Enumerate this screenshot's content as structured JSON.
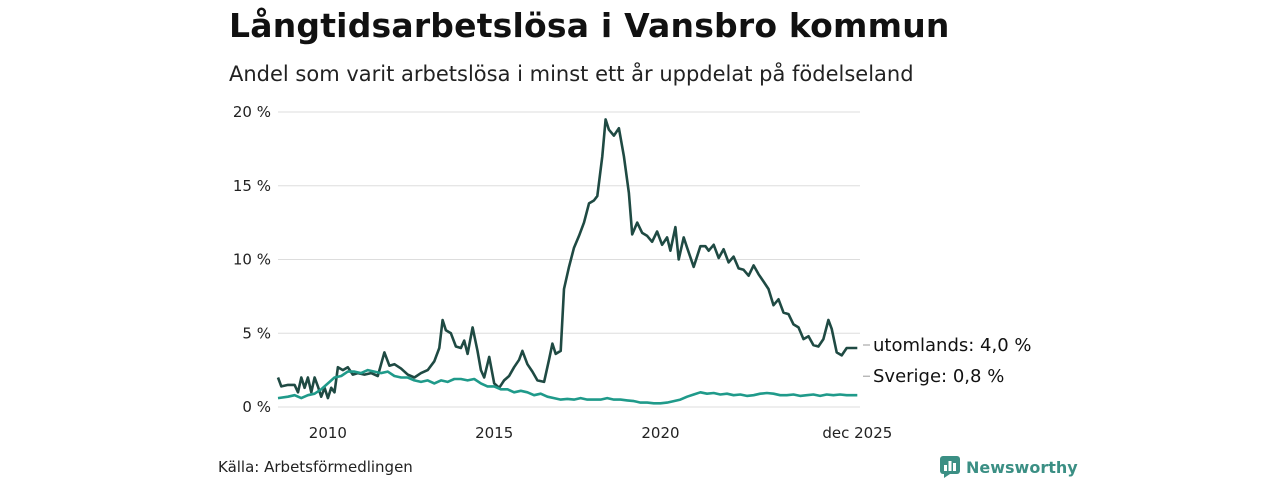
{
  "title": "Långtidsarbetslösa i Vansbro kommun",
  "subtitle": "Andel som varit arbetslösa i minst ett år uppdelat på födelseland",
  "source": "Källa: Arbetsförmedlingen",
  "brand": "Newsworthy",
  "colors": {
    "utomlands": "#1f4a43",
    "sverige": "#1f9a8a",
    "grid": "#dddddd",
    "brand": "#3b8f84"
  },
  "chart_data": {
    "type": "line",
    "title": "Långtidsarbetslösa i Vansbro kommun",
    "ylim": [
      0,
      20
    ],
    "xlim": [
      2008.5,
      2026.0
    ],
    "y_ticks": [
      {
        "value": 0,
        "label": "0 %"
      },
      {
        "value": 5,
        "label": "5 %"
      },
      {
        "value": 10,
        "label": "10 %"
      },
      {
        "value": 15,
        "label": "15 %"
      },
      {
        "value": 20,
        "label": "20 %"
      }
    ],
    "x_ticks": [
      {
        "value": 2010,
        "label": "2010"
      },
      {
        "value": 2015,
        "label": "2015"
      },
      {
        "value": 2020,
        "label": "2020"
      },
      {
        "value": 2025.92,
        "label": "dec 2025"
      }
    ],
    "grid": true,
    "series": [
      {
        "name": "utomlands",
        "end_label": "utomlands: 4,0 %",
        "points": [
          [
            2008.5,
            2.0
          ],
          [
            2008.6,
            1.4
          ],
          [
            2008.8,
            1.5
          ],
          [
            2009.0,
            1.5
          ],
          [
            2009.1,
            1.0
          ],
          [
            2009.2,
            2.0
          ],
          [
            2009.3,
            1.3
          ],
          [
            2009.4,
            2.0
          ],
          [
            2009.5,
            1.0
          ],
          [
            2009.6,
            2.0
          ],
          [
            2009.7,
            1.4
          ],
          [
            2009.8,
            0.7
          ],
          [
            2009.9,
            1.3
          ],
          [
            2010.0,
            0.6
          ],
          [
            2010.1,
            1.3
          ],
          [
            2010.2,
            1.0
          ],
          [
            2010.3,
            2.7
          ],
          [
            2010.45,
            2.5
          ],
          [
            2010.6,
            2.7
          ],
          [
            2010.75,
            2.2
          ],
          [
            2010.9,
            2.3
          ],
          [
            2011.1,
            2.2
          ],
          [
            2011.3,
            2.3
          ],
          [
            2011.5,
            2.1
          ],
          [
            2011.7,
            3.7
          ],
          [
            2011.85,
            2.8
          ],
          [
            2012.0,
            2.9
          ],
          [
            2012.2,
            2.6
          ],
          [
            2012.4,
            2.2
          ],
          [
            2012.6,
            2.0
          ],
          [
            2012.8,
            2.3
          ],
          [
            2013.0,
            2.5
          ],
          [
            2013.2,
            3.1
          ],
          [
            2013.35,
            4.0
          ],
          [
            2013.45,
            5.9
          ],
          [
            2013.55,
            5.2
          ],
          [
            2013.7,
            5.0
          ],
          [
            2013.85,
            4.1
          ],
          [
            2014.0,
            4.0
          ],
          [
            2014.1,
            4.5
          ],
          [
            2014.2,
            3.6
          ],
          [
            2014.35,
            5.4
          ],
          [
            2014.5,
            3.8
          ],
          [
            2014.6,
            2.5
          ],
          [
            2014.7,
            2.0
          ],
          [
            2014.85,
            3.4
          ],
          [
            2015.0,
            1.6
          ],
          [
            2015.15,
            1.3
          ],
          [
            2015.3,
            1.8
          ],
          [
            2015.45,
            2.1
          ],
          [
            2015.6,
            2.7
          ],
          [
            2015.75,
            3.2
          ],
          [
            2015.85,
            3.8
          ],
          [
            2016.0,
            2.9
          ],
          [
            2016.15,
            2.4
          ],
          [
            2016.3,
            1.8
          ],
          [
            2016.5,
            1.7
          ],
          [
            2016.65,
            3.2
          ],
          [
            2016.75,
            4.3
          ],
          [
            2016.85,
            3.6
          ],
          [
            2017.0,
            3.8
          ],
          [
            2017.1,
            8.0
          ],
          [
            2017.25,
            9.5
          ],
          [
            2017.4,
            10.8
          ],
          [
            2017.55,
            11.6
          ],
          [
            2017.7,
            12.5
          ],
          [
            2017.85,
            13.8
          ],
          [
            2018.0,
            14.0
          ],
          [
            2018.1,
            14.3
          ],
          [
            2018.25,
            17.0
          ],
          [
            2018.35,
            19.5
          ],
          [
            2018.45,
            18.8
          ],
          [
            2018.6,
            18.4
          ],
          [
            2018.75,
            18.9
          ],
          [
            2018.9,
            17.0
          ],
          [
            2019.05,
            14.5
          ],
          [
            2019.15,
            11.7
          ],
          [
            2019.3,
            12.5
          ],
          [
            2019.45,
            11.8
          ],
          [
            2019.6,
            11.6
          ],
          [
            2019.75,
            11.2
          ],
          [
            2019.9,
            11.9
          ],
          [
            2020.05,
            11.0
          ],
          [
            2020.2,
            11.5
          ],
          [
            2020.3,
            10.6
          ],
          [
            2020.45,
            12.2
          ],
          [
            2020.55,
            10.0
          ],
          [
            2020.7,
            11.5
          ],
          [
            2020.8,
            10.8
          ],
          [
            2021.0,
            9.5
          ],
          [
            2021.2,
            10.9
          ],
          [
            2021.35,
            10.9
          ],
          [
            2021.45,
            10.6
          ],
          [
            2021.6,
            11.0
          ],
          [
            2021.75,
            10.1
          ],
          [
            2021.9,
            10.7
          ],
          [
            2022.05,
            9.8
          ],
          [
            2022.2,
            10.2
          ],
          [
            2022.35,
            9.4
          ],
          [
            2022.5,
            9.3
          ],
          [
            2022.65,
            8.9
          ],
          [
            2022.8,
            9.6
          ],
          [
            2022.95,
            9.0
          ],
          [
            2023.1,
            8.5
          ],
          [
            2023.25,
            8.0
          ],
          [
            2023.4,
            6.9
          ],
          [
            2023.55,
            7.3
          ],
          [
            2023.7,
            6.4
          ],
          [
            2023.85,
            6.3
          ],
          [
            2024.0,
            5.6
          ],
          [
            2024.15,
            5.4
          ],
          [
            2024.3,
            4.6
          ],
          [
            2024.45,
            4.8
          ],
          [
            2024.6,
            4.2
          ],
          [
            2024.75,
            4.1
          ],
          [
            2024.9,
            4.6
          ],
          [
            2025.05,
            5.9
          ],
          [
            2025.15,
            5.3
          ],
          [
            2025.3,
            3.7
          ],
          [
            2025.45,
            3.5
          ],
          [
            2025.6,
            4.0
          ],
          [
            2025.92,
            4.0
          ]
        ]
      },
      {
        "name": "Sverige",
        "end_label": "Sverige: 0,8 %",
        "points": [
          [
            2008.5,
            0.6
          ],
          [
            2008.8,
            0.7
          ],
          [
            2009.0,
            0.8
          ],
          [
            2009.2,
            0.6
          ],
          [
            2009.4,
            0.8
          ],
          [
            2009.6,
            0.9
          ],
          [
            2009.8,
            1.2
          ],
          [
            2010.0,
            1.6
          ],
          [
            2010.2,
            2.0
          ],
          [
            2010.4,
            2.1
          ],
          [
            2010.6,
            2.4
          ],
          [
            2010.8,
            2.4
          ],
          [
            2011.0,
            2.3
          ],
          [
            2011.2,
            2.5
          ],
          [
            2011.4,
            2.4
          ],
          [
            2011.6,
            2.3
          ],
          [
            2011.8,
            2.4
          ],
          [
            2012.0,
            2.1
          ],
          [
            2012.2,
            2.0
          ],
          [
            2012.4,
            2.0
          ],
          [
            2012.6,
            1.8
          ],
          [
            2012.8,
            1.7
          ],
          [
            2013.0,
            1.8
          ],
          [
            2013.2,
            1.6
          ],
          [
            2013.4,
            1.8
          ],
          [
            2013.6,
            1.7
          ],
          [
            2013.8,
            1.9
          ],
          [
            2014.0,
            1.9
          ],
          [
            2014.2,
            1.8
          ],
          [
            2014.4,
            1.9
          ],
          [
            2014.6,
            1.6
          ],
          [
            2014.8,
            1.4
          ],
          [
            2015.0,
            1.4
          ],
          [
            2015.2,
            1.2
          ],
          [
            2015.4,
            1.2
          ],
          [
            2015.6,
            1.0
          ],
          [
            2015.8,
            1.1
          ],
          [
            2016.0,
            1.0
          ],
          [
            2016.2,
            0.8
          ],
          [
            2016.4,
            0.9
          ],
          [
            2016.6,
            0.7
          ],
          [
            2016.8,
            0.6
          ],
          [
            2017.0,
            0.5
          ],
          [
            2017.2,
            0.55
          ],
          [
            2017.4,
            0.5
          ],
          [
            2017.6,
            0.6
          ],
          [
            2017.8,
            0.5
          ],
          [
            2018.0,
            0.5
          ],
          [
            2018.2,
            0.5
          ],
          [
            2018.4,
            0.6
          ],
          [
            2018.6,
            0.5
          ],
          [
            2018.8,
            0.5
          ],
          [
            2019.0,
            0.45
          ],
          [
            2019.2,
            0.4
          ],
          [
            2019.4,
            0.3
          ],
          [
            2019.6,
            0.3
          ],
          [
            2019.8,
            0.25
          ],
          [
            2020.0,
            0.25
          ],
          [
            2020.2,
            0.3
          ],
          [
            2020.4,
            0.4
          ],
          [
            2020.6,
            0.5
          ],
          [
            2020.8,
            0.7
          ],
          [
            2021.0,
            0.85
          ],
          [
            2021.2,
            1.0
          ],
          [
            2021.4,
            0.9
          ],
          [
            2021.6,
            0.95
          ],
          [
            2021.8,
            0.85
          ],
          [
            2022.0,
            0.9
          ],
          [
            2022.2,
            0.8
          ],
          [
            2022.4,
            0.85
          ],
          [
            2022.6,
            0.75
          ],
          [
            2022.8,
            0.8
          ],
          [
            2023.0,
            0.9
          ],
          [
            2023.2,
            0.95
          ],
          [
            2023.4,
            0.9
          ],
          [
            2023.6,
            0.8
          ],
          [
            2023.8,
            0.8
          ],
          [
            2024.0,
            0.85
          ],
          [
            2024.2,
            0.75
          ],
          [
            2024.4,
            0.8
          ],
          [
            2024.6,
            0.85
          ],
          [
            2024.8,
            0.75
          ],
          [
            2025.0,
            0.85
          ],
          [
            2025.2,
            0.8
          ],
          [
            2025.4,
            0.85
          ],
          [
            2025.6,
            0.8
          ],
          [
            2025.92,
            0.8
          ]
        ]
      }
    ]
  }
}
